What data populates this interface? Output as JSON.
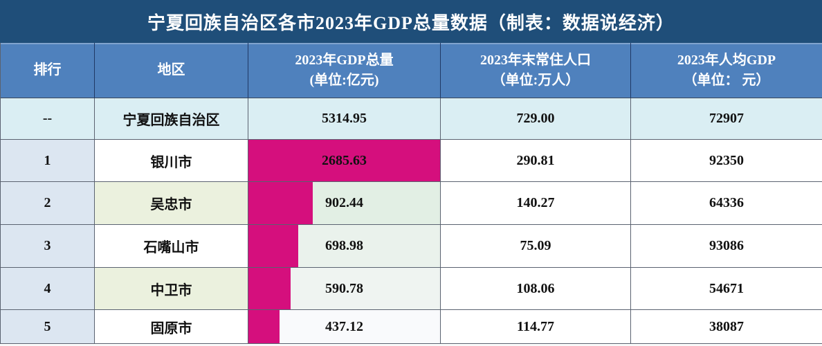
{
  "chart_data": {
    "type": "table",
    "title": "宁夏回族自治区各市2023年GDP总量数据（制表：数据说经济）",
    "columns": [
      {
        "label": "排行",
        "unit": ""
      },
      {
        "label": "地区",
        "unit": ""
      },
      {
        "label": "2023年GDP总量",
        "unit": "(单位:亿元)"
      },
      {
        "label": "2023年末常住人口",
        "unit": "（单位:万人）"
      },
      {
        "label": "2023年人均GDP",
        "unit": "（单位： 元）"
      }
    ],
    "bar": {
      "column": "2023年GDP总量",
      "max_value": 2685.63,
      "color": "#D50F7D"
    },
    "rows": [
      {
        "rank": "--",
        "region": "宁夏回族自治区",
        "gdp": "5314.95",
        "gdp_value": 5314.95,
        "population": "729.00",
        "per_capita": "72907",
        "is_total": true
      },
      {
        "rank": "1",
        "region": "银川市",
        "gdp": "2685.63",
        "gdp_value": 2685.63,
        "population": "290.81",
        "per_capita": "92350",
        "is_total": false
      },
      {
        "rank": "2",
        "region": "吴忠市",
        "gdp": "902.44",
        "gdp_value": 902.44,
        "population": "140.27",
        "per_capita": "64336",
        "is_total": false
      },
      {
        "rank": "3",
        "region": "石嘴山市",
        "gdp": "698.98",
        "gdp_value": 698.98,
        "population": "75.09",
        "per_capita": "93086",
        "is_total": false
      },
      {
        "rank": "4",
        "region": "中卫市",
        "gdp": "590.78",
        "gdp_value": 590.78,
        "population": "108.06",
        "per_capita": "54671",
        "is_total": false
      },
      {
        "rank": "5",
        "region": "固原市",
        "gdp": "437.12",
        "gdp_value": 437.12,
        "population": "114.77",
        "per_capita": "38087",
        "is_total": false
      }
    ]
  },
  "colors": {
    "title_bg": "#1F4E79",
    "header_bg": "#4F81BD",
    "total_row_bg": "#DAEEF3",
    "rank_col_bg": "#DCE6F1",
    "region_alt_bg": "#EBF1DE",
    "bar_color": "#D50F7D",
    "border": "#5A6270",
    "text": "#111111",
    "gdp_track": [
      "#DAEEF3",
      "#D50F7D",
      "#E2EFE4",
      "#EAF2EC",
      "#EFF4F1",
      "#F9FAFC"
    ],
    "region_bg": [
      "#DAEEF3",
      "#FFFFFF",
      "#EBF1DE",
      "#FFFFFF",
      "#EBF1DE",
      "#FFFFFF"
    ],
    "num_bg": [
      "#DAEEF3",
      "#FFFFFF",
      "#FFFFFF",
      "#FFFFFF",
      "#FFFFFF",
      "#FFFFFF"
    ]
  }
}
